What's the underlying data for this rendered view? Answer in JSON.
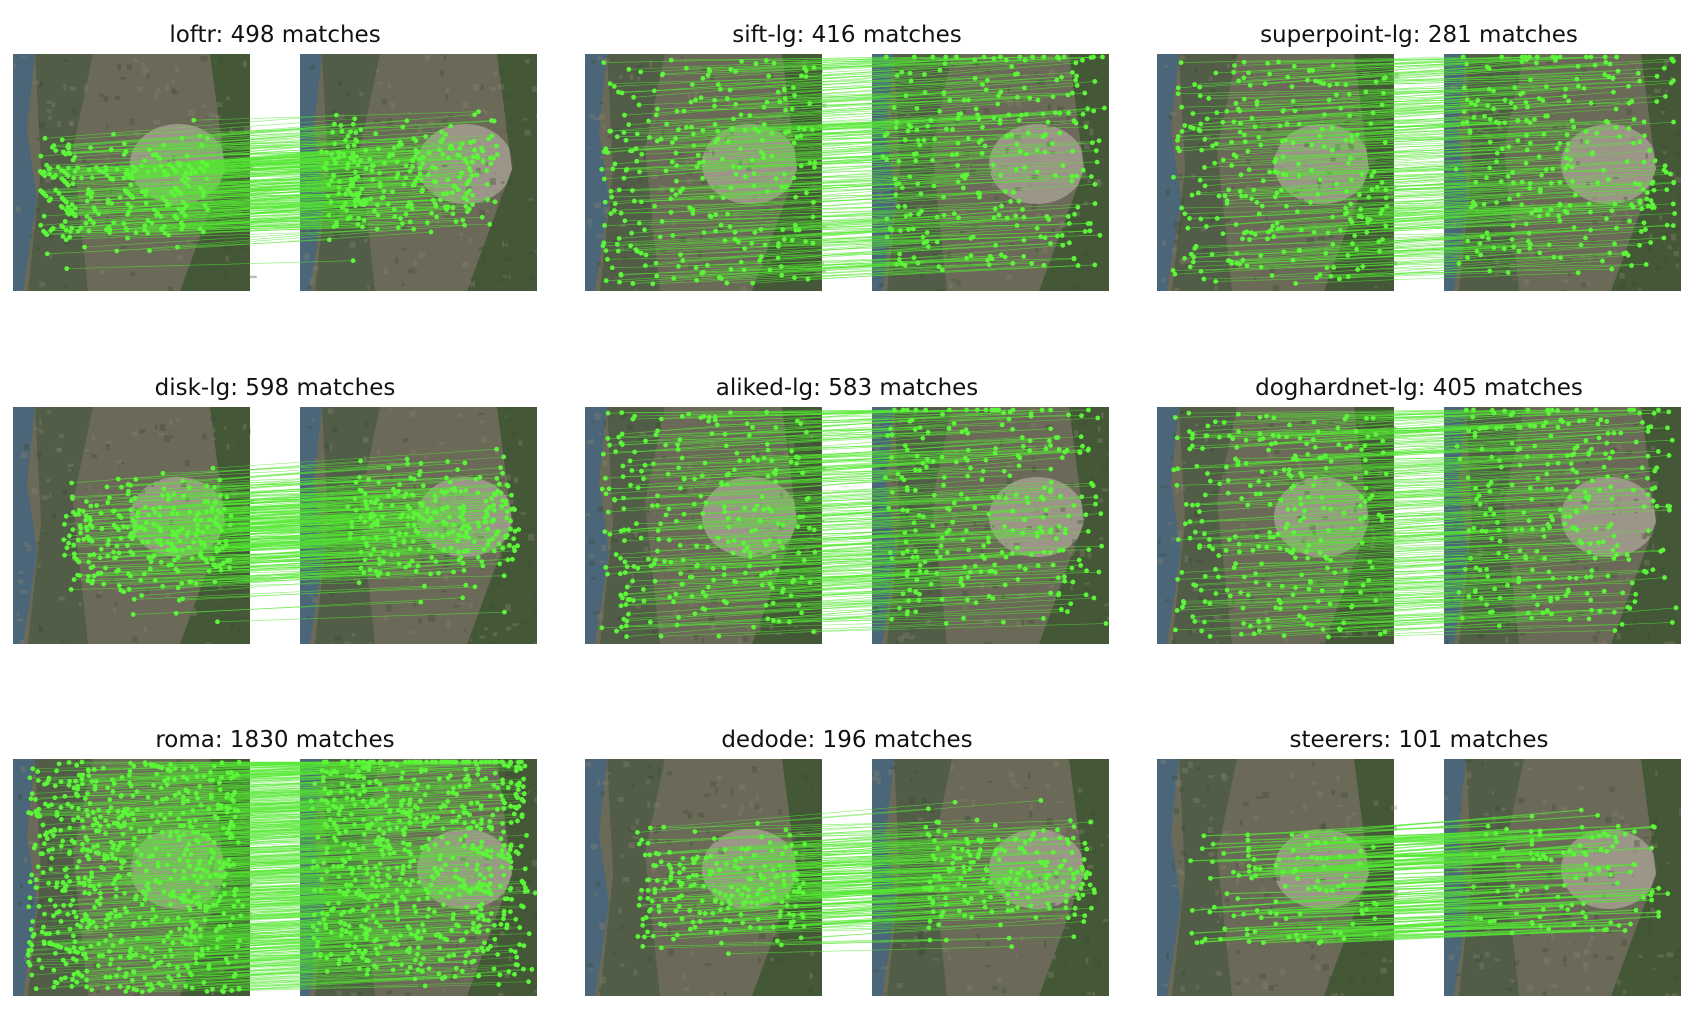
{
  "figure": {
    "panels": [
      {
        "id": "loftr",
        "title": "loftr: 498 matches",
        "matches": 498,
        "dist": "cluster-left"
      },
      {
        "id": "sift-lg",
        "title": "sift-lg: 416 matches",
        "matches": 416,
        "dist": "spread"
      },
      {
        "id": "superpoint-lg",
        "title": "superpoint-lg: 281 matches",
        "matches": 281,
        "dist": "spread-sparse"
      },
      {
        "id": "disk-lg",
        "title": "disk-lg: 598 matches",
        "matches": 598,
        "dist": "cluster-mid"
      },
      {
        "id": "aliked-lg",
        "title": "aliked-lg: 583 matches",
        "matches": 583,
        "dist": "spread"
      },
      {
        "id": "doghardnet-lg",
        "title": "doghardnet-lg: 405 matches",
        "matches": 405,
        "dist": "spread"
      },
      {
        "id": "roma",
        "title": "roma: 1830 matches",
        "matches": 1830,
        "dist": "full"
      },
      {
        "id": "dedode",
        "title": "dedode: 196 matches",
        "matches": 196,
        "dist": "cluster-mid"
      },
      {
        "id": "steerers",
        "title": "steerers: 101 matches",
        "matches": 101,
        "dist": "few"
      }
    ],
    "colors": {
      "match": "#5df53a",
      "match_line": "#54e832",
      "sea": "#4a6678",
      "land_dark": "#4b5a44",
      "land_mid": "#6b6a58",
      "city": "#a59d90",
      "forest": "#3d5533"
    }
  }
}
